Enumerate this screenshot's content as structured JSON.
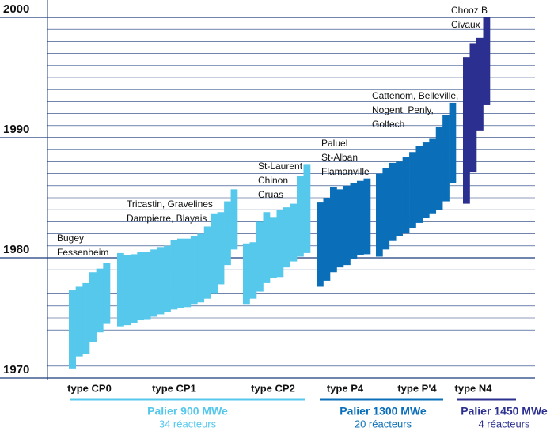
{
  "chart_data": {
    "type": "range-bar",
    "ylim": [
      1970,
      2000
    ],
    "yticks": [
      1970,
      1980,
      1990,
      2000
    ],
    "minor_yticks": [
      1970,
      1971,
      1972,
      1973,
      1974,
      1975,
      1976,
      1977,
      1978,
      1979,
      1980,
      1981,
      1982,
      1983,
      1984,
      1985,
      1986,
      1987,
      1988,
      1989,
      1990,
      1991,
      1992,
      1993,
      1994,
      1995,
      1996,
      1997,
      1998,
      1999,
      2000
    ],
    "grid": true,
    "groups": [
      {
        "name": "type CP0",
        "color": "#55c8ec",
        "bars": [
          [
            1970.8,
            1977.3
          ],
          [
            1971.8,
            1977.6
          ],
          [
            1972.0,
            1977.9
          ],
          [
            1973.0,
            1978.8
          ],
          [
            1973.8,
            1979.1
          ],
          [
            1974.5,
            1979.6
          ]
        ]
      },
      {
        "name": "type CP1",
        "color": "#55c8ec",
        "bars": [
          [
            1974.3,
            1980.4
          ],
          [
            1974.4,
            1980.2
          ],
          [
            1974.6,
            1980.3
          ],
          [
            1974.8,
            1980.5
          ],
          [
            1974.9,
            1980.5
          ],
          [
            1975.1,
            1980.7
          ],
          [
            1975.3,
            1980.9
          ],
          [
            1975.5,
            1981.0
          ],
          [
            1975.7,
            1981.5
          ],
          [
            1975.8,
            1981.6
          ],
          [
            1975.9,
            1981.6
          ],
          [
            1976.1,
            1981.8
          ],
          [
            1976.3,
            1982.0
          ],
          [
            1976.6,
            1982.6
          ],
          [
            1977.0,
            1983.7
          ],
          [
            1977.8,
            1983.8
          ],
          [
            1979.4,
            1984.7
          ],
          [
            1980.7,
            1985.7
          ]
        ]
      },
      {
        "name": "type CP2",
        "color": "#55c8ec",
        "bars": [
          [
            1976.1,
            1981.2
          ],
          [
            1976.6,
            1981.3
          ],
          [
            1977.2,
            1983.0
          ],
          [
            1977.9,
            1983.8
          ],
          [
            1978.3,
            1983.4
          ],
          [
            1978.4,
            1984.0
          ],
          [
            1979.2,
            1984.2
          ],
          [
            1979.7,
            1984.5
          ],
          [
            1980.1,
            1986.8
          ],
          [
            1980.4,
            1987.8
          ]
        ]
      },
      {
        "name": "type P4",
        "color": "#0a6fb8",
        "bars": [
          [
            1977.6,
            1984.6
          ],
          [
            1978.1,
            1985.0
          ],
          [
            1978.8,
            1985.9
          ],
          [
            1979.2,
            1985.7
          ],
          [
            1979.4,
            1986.0
          ],
          [
            1979.9,
            1986.2
          ],
          [
            1980.2,
            1986.4
          ],
          [
            1980.3,
            1986.6
          ]
        ]
      },
      {
        "name": "type P'4",
        "color": "#0a6fb8",
        "bars": [
          [
            1980.1,
            1987.0
          ],
          [
            1980.7,
            1987.5
          ],
          [
            1981.4,
            1987.9
          ],
          [
            1981.8,
            1988.0
          ],
          [
            1982.1,
            1988.4
          ],
          [
            1982.5,
            1988.8
          ],
          [
            1982.9,
            1989.3
          ],
          [
            1983.3,
            1989.6
          ],
          [
            1983.7,
            1989.9
          ],
          [
            1984.0,
            1990.9
          ],
          [
            1984.7,
            1991.9
          ],
          [
            1986.2,
            1992.9
          ]
        ]
      },
      {
        "name": "type N4",
        "color": "#2b2f8f",
        "bars": [
          [
            1984.5,
            1996.7
          ],
          [
            1987.1,
            1997.8
          ],
          [
            1990.6,
            1998.3
          ],
          [
            1992.7,
            2000.0
          ]
        ]
      }
    ],
    "annotations": [
      {
        "lines": [
          "Bugey",
          "Fessenheim"
        ]
      },
      {
        "lines": [
          "Tricastin, Gravelines",
          "Dampierre, Blayais"
        ]
      },
      {
        "lines": [
          "St-Laurent",
          "Chinon",
          "Cruas"
        ]
      },
      {
        "lines": [
          "Paluel",
          "St-Alban",
          "Flamanville"
        ]
      },
      {
        "lines": [
          "Cattenom, Belleville,",
          "Nogent, Penly,",
          "Golfech"
        ]
      },
      {
        "lines": [
          "Chooz B",
          "Civaux"
        ]
      }
    ],
    "paliers": [
      {
        "name": "Palier 900 MWe",
        "count": "34 réacteurs",
        "color": "#55c8ec"
      },
      {
        "name": "Palier 1300 MWe",
        "count": "20 réacteurs",
        "color": "#0a6fb8"
      },
      {
        "name": "Palier 1450 MWe",
        "count": "4 réacteurs",
        "color": "#2b2f8f"
      }
    ]
  }
}
